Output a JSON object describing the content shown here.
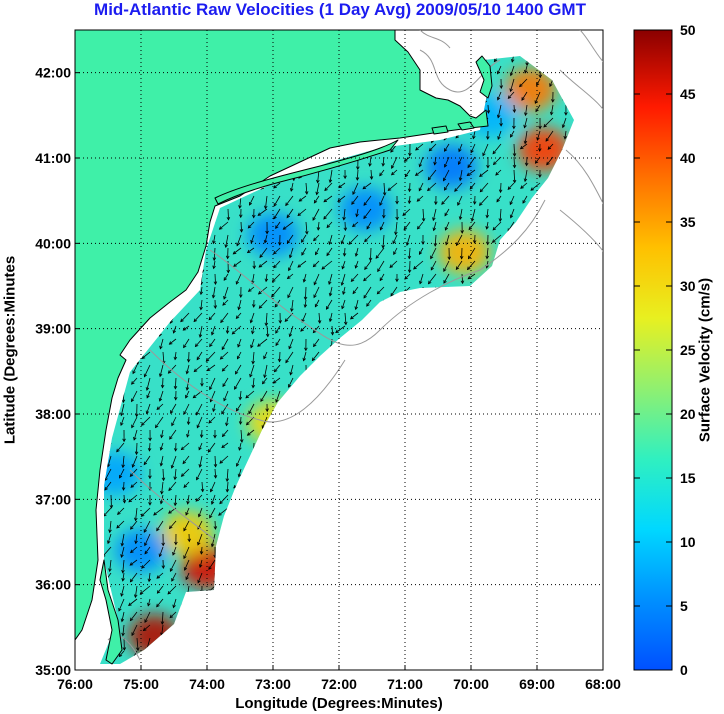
{
  "title": "Mid-Atlantic Raw Velocities (1 Day Avg) 2009/05/10 1400 GMT",
  "colors": {
    "title": "#1c1cf0",
    "land": "#3ff0a8",
    "ocean": "#ffffff",
    "grid": "#000000",
    "bathymetry": "#9a9a9a",
    "vector": "#000000"
  },
  "chart_data": {
    "type": "heatmap",
    "title": "Mid-Atlantic Raw Velocities (1 Day Avg) 2009/05/10 1400 GMT",
    "xlabel": "Longitude (Degrees:Minutes)",
    "ylabel": "Latitude (Degrees:Minutes",
    "x_tick_labels": [
      "76:00",
      "75:00",
      "74:00",
      "73:00",
      "72:00",
      "71:00",
      "70:00",
      "69:00",
      "68:00"
    ],
    "y_tick_labels": [
      "35:00",
      "36:00",
      "37:00",
      "38:00",
      "39:00",
      "40:00",
      "41:00",
      "42:00"
    ],
    "xlim": [
      -76,
      -68
    ],
    "ylim": [
      35,
      42.5
    ],
    "grid": true,
    "colorbar": {
      "label": "Surface Velocity (cm/s)",
      "range": [
        0,
        50
      ],
      "tick_labels": [
        "0",
        "5",
        "10",
        "15",
        "20",
        "25",
        "30",
        "35",
        "40",
        "45",
        "50"
      ],
      "colormap": "jet"
    },
    "hotspots": [
      {
        "lon": -74.8,
        "lat": 35.4,
        "speed": 48
      },
      {
        "lon": -74.0,
        "lat": 36.2,
        "speed": 46
      },
      {
        "lon": -74.3,
        "lat": 36.6,
        "speed": 32
      },
      {
        "lon": -68.9,
        "lat": 41.1,
        "speed": 42
      },
      {
        "lon": -69.1,
        "lat": 41.8,
        "speed": 38
      },
      {
        "lon": -70.1,
        "lat": 39.9,
        "speed": 34
      },
      {
        "lon": -73.0,
        "lat": 37.9,
        "speed": 30
      },
      {
        "lon": -75.0,
        "lat": 36.4,
        "speed": 5
      },
      {
        "lon": -75.4,
        "lat": 37.3,
        "speed": 7
      },
      {
        "lon": -73.0,
        "lat": 40.1,
        "speed": 5
      },
      {
        "lon": -71.6,
        "lat": 40.4,
        "speed": 5
      },
      {
        "lon": -70.3,
        "lat": 40.9,
        "speed": 3
      },
      {
        "lon": -69.7,
        "lat": 41.5,
        "speed": 8
      }
    ],
    "mean_flow": "southwestward along the shelf"
  }
}
